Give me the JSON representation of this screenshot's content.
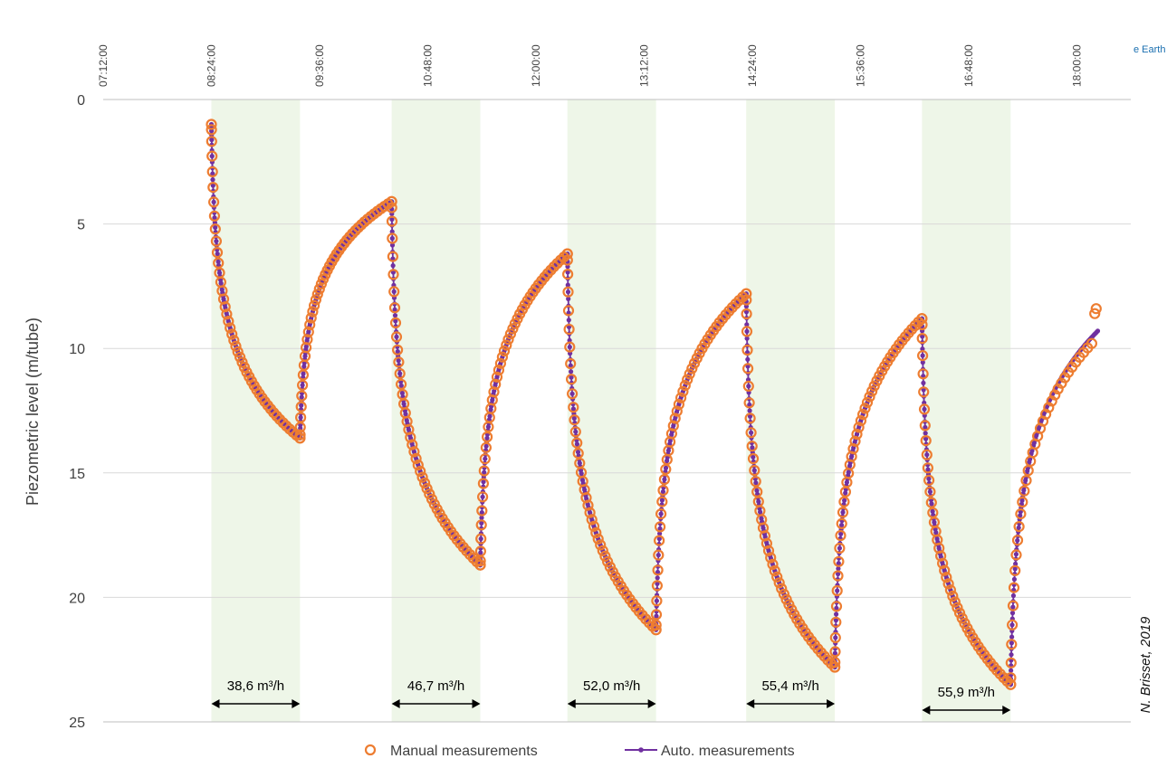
{
  "corner_text": "e Earth",
  "credit": "N. Brisset, 2019",
  "chart_data": {
    "type": "line",
    "title": "",
    "xlabel": "",
    "ylabel": "Piezometric level (m/tube)",
    "ylim": [
      0,
      25
    ],
    "y_inverted": true,
    "y_ticks": [
      "0",
      "5",
      "10",
      "15",
      "20",
      "25"
    ],
    "x_ticks": [
      "07:12:00",
      "08:24:00",
      "09:36:00",
      "10:48:00",
      "12:00:00",
      "13:12:00",
      "14:24:00",
      "15:36:00",
      "16:48:00",
      "18:00:00"
    ],
    "x_range": [
      "07:12",
      "18:36"
    ],
    "grid": "horizontal",
    "legend_position": "bottom",
    "colors": {
      "manual": "#ED7D31",
      "auto": "#7030A0",
      "pumping_band": "#EEF6E8",
      "grid": "#D9D9D9"
    },
    "pumping_periods": [
      {
        "start": "08:24",
        "end": "09:23",
        "rate": "38,6 m³/h"
      },
      {
        "start": "10:24",
        "end": "11:23",
        "rate": "46,7 m³/h"
      },
      {
        "start": "12:21",
        "end": "13:20",
        "rate": "52,0 m³/h"
      },
      {
        "start": "14:20",
        "end": "15:19",
        "rate": "55,4 m³/h"
      },
      {
        "start": "16:17",
        "end": "17:16",
        "rate": "55,9 m³/h"
      }
    ],
    "series": [
      {
        "name": "Manual measurements",
        "marker": "circle",
        "phases": [
          {
            "type": "draw",
            "t0": "08:24",
            "t1": "09:23",
            "y0": 1.0,
            "y1": 13.6,
            "n": 45
          },
          {
            "type": "recover",
            "t0": "09:23",
            "t1": "10:24",
            "y0": 13.6,
            "y1": 4.1,
            "n": 45
          },
          {
            "type": "draw",
            "t0": "10:24",
            "t1": "11:23",
            "y0": 4.1,
            "y1": 18.7,
            "n": 45
          },
          {
            "type": "recover",
            "t0": "11:23",
            "t1": "12:21",
            "y0": 18.7,
            "y1": 6.2,
            "n": 45
          },
          {
            "type": "draw",
            "t0": "12:21",
            "t1": "13:20",
            "y0": 6.2,
            "y1": 21.3,
            "n": 45
          },
          {
            "type": "recover",
            "t0": "13:20",
            "t1": "14:20",
            "y0": 21.3,
            "y1": 7.8,
            "n": 45
          },
          {
            "type": "draw",
            "t0": "14:20",
            "t1": "15:19",
            "y0": 7.8,
            "y1": 22.8,
            "n": 45
          },
          {
            "type": "recover",
            "t0": "15:19",
            "t1": "16:17",
            "y0": 22.8,
            "y1": 8.8,
            "n": 45
          },
          {
            "type": "draw",
            "t0": "16:17",
            "t1": "17:16",
            "y0": 8.8,
            "y1": 23.5,
            "n": 45
          },
          {
            "type": "recover",
            "t0": "17:16",
            "t1": "18:10",
            "y0": 23.5,
            "y1": 9.8,
            "n": 35
          }
        ],
        "extra_points": [
          {
            "t": "18:12",
            "y": 8.6
          },
          {
            "t": "18:13",
            "y": 8.4
          }
        ]
      },
      {
        "name": "Auto. measurements",
        "marker": "dot",
        "phases": [
          {
            "type": "draw",
            "t0": "08:24",
            "t1": "09:23",
            "y0": 1.0,
            "y1": 13.6,
            "n": 120
          },
          {
            "type": "recover",
            "t0": "09:23",
            "t1": "10:24",
            "y0": 13.6,
            "y1": 4.1,
            "n": 120
          },
          {
            "type": "draw",
            "t0": "10:24",
            "t1": "11:23",
            "y0": 4.1,
            "y1": 18.7,
            "n": 120
          },
          {
            "type": "recover",
            "t0": "11:23",
            "t1": "12:21",
            "y0": 18.7,
            "y1": 6.2,
            "n": 120
          },
          {
            "type": "draw",
            "t0": "12:21",
            "t1": "13:20",
            "y0": 6.2,
            "y1": 21.3,
            "n": 120
          },
          {
            "type": "recover",
            "t0": "13:20",
            "t1": "14:20",
            "y0": 21.3,
            "y1": 7.8,
            "n": 120
          },
          {
            "type": "draw",
            "t0": "14:20",
            "t1": "15:19",
            "y0": 7.8,
            "y1": 22.8,
            "n": 120
          },
          {
            "type": "recover",
            "t0": "15:19",
            "t1": "16:17",
            "y0": 22.8,
            "y1": 8.8,
            "n": 120
          },
          {
            "type": "draw",
            "t0": "16:17",
            "t1": "17:16",
            "y0": 8.8,
            "y1": 23.5,
            "n": 120
          },
          {
            "type": "recover",
            "t0": "17:16",
            "t1": "18:14",
            "y0": 23.5,
            "y1": 9.3,
            "n": 120
          }
        ],
        "extra_points": []
      }
    ]
  }
}
